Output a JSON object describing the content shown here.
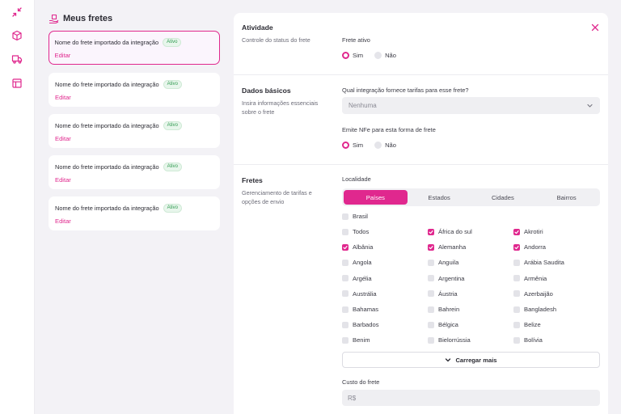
{
  "colors": {
    "accent": "#e0288e",
    "badge_text": "#2f9a4f",
    "panel": "#ffffff",
    "background": "#f3f2f6"
  },
  "rail": {
    "icons": [
      "collapse-arrows-icon",
      "box-icon",
      "truck-icon",
      "table-icon"
    ]
  },
  "list": {
    "title": "Meus fretes",
    "icon": "hand-box-icon",
    "cards": [
      {
        "name": "Nome do frete importado da integração",
        "badge": "Ativo",
        "edit": "Editar",
        "active": true
      },
      {
        "name": "Nome do frete importado da integração",
        "badge": "Ativo",
        "edit": "Editar",
        "active": false
      },
      {
        "name": "Nome do frete importado da integração",
        "badge": "Ativo",
        "edit": "Editar",
        "active": false
      },
      {
        "name": "Nome do frete importado da integração",
        "badge": "Ativo",
        "edit": "Editar",
        "active": false
      },
      {
        "name": "Nome do frete importado da integração",
        "badge": "Ativo",
        "edit": "Editar",
        "active": false
      }
    ]
  },
  "form": {
    "atividade": {
      "title": "Atividade",
      "desc": "Controle do status do frete",
      "field_label": "Frete ativo",
      "options": [
        "Sim",
        "Não"
      ],
      "selected": "Sim"
    },
    "dados": {
      "title": "Dados básicos",
      "desc": "Insira informações essenciais sobre o frete",
      "integration_label": "Qual integração fornece tarifas para esse frete?",
      "integration_value": "Nenhuma",
      "nfe_label": "Emite NFe para esta forma de frete",
      "nfe_options": [
        "Sim",
        "Não"
      ],
      "nfe_selected": "Sim"
    },
    "fretes": {
      "title": "Fretes",
      "desc": "Gerenciamento de tarifas e opções de envio",
      "locality_label": "Localidade",
      "tabs": [
        "Países",
        "Estados",
        "Cidades",
        "Bairros"
      ],
      "active_tab": "Países",
      "top_country": {
        "name": "Brasil",
        "checked": false
      },
      "countries": [
        {
          "name": "Todos",
          "checked": false
        },
        {
          "name": "África do sul",
          "checked": true
        },
        {
          "name": "Akrotiri",
          "checked": true
        },
        {
          "name": "Albânia",
          "checked": true
        },
        {
          "name": "Alemanha",
          "checked": true
        },
        {
          "name": "Andorra",
          "checked": true
        },
        {
          "name": "Angola",
          "checked": false
        },
        {
          "name": "Anguila",
          "checked": false
        },
        {
          "name": "Arábia Saudita",
          "checked": false
        },
        {
          "name": "Argélia",
          "checked": false
        },
        {
          "name": "Argentina",
          "checked": false
        },
        {
          "name": "Armênia",
          "checked": false
        },
        {
          "name": "Austrália",
          "checked": false
        },
        {
          "name": "Áustria",
          "checked": false
        },
        {
          "name": "Azerbaijão",
          "checked": false
        },
        {
          "name": "Bahamas",
          "checked": false
        },
        {
          "name": "Bahrein",
          "checked": false
        },
        {
          "name": "Bangladesh",
          "checked": false
        },
        {
          "name": "Barbados",
          "checked": false
        },
        {
          "name": "Bélgica",
          "checked": false
        },
        {
          "name": "Belize",
          "checked": false
        },
        {
          "name": "Benim",
          "checked": false
        },
        {
          "name": "Bielorrússia",
          "checked": false
        },
        {
          "name": "Bolívia",
          "checked": false
        }
      ],
      "load_more": "Carregar mais",
      "cost_label": "Custo do frete",
      "cost_placeholder": "R$"
    }
  }
}
